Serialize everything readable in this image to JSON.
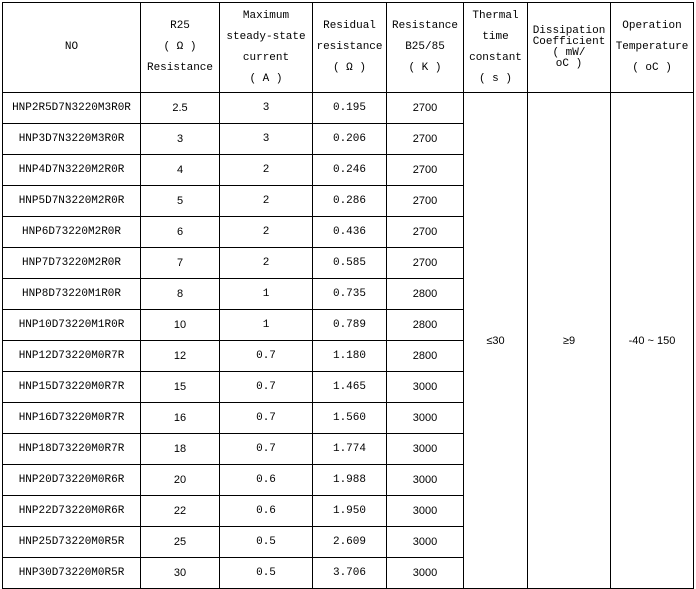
{
  "header": [
    [
      "NO"
    ],
    [
      "R25",
      "( Ω )",
      "Resistance"
    ],
    [
      "Maximum",
      "steady-state",
      "current",
      "( A )"
    ],
    [
      "Residual",
      "resistance",
      "( Ω )"
    ],
    [
      "Resistance",
      "B25/85",
      "( K )"
    ],
    [
      "Thermal",
      "time",
      "constant",
      "( s )"
    ],
    [
      "Dissipation",
      "Coefficient",
      "( mW/",
      "oC )"
    ],
    [
      "Operation",
      "Temperature",
      "( oC )"
    ]
  ],
  "rows": [
    [
      "HNP2R5D7N3220M3R0R",
      "2.5",
      "3",
      "0.195",
      "2700"
    ],
    [
      "HNP3D7N3220M3R0R",
      "3",
      "3",
      "0.206",
      "2700"
    ],
    [
      "HNP4D7N3220M2R0R",
      "4",
      "2",
      "0.246",
      "2700"
    ],
    [
      "HNP5D7N3220M2R0R",
      "5",
      "2",
      "0.286",
      "2700"
    ],
    [
      "HNP6D73220M2R0R",
      "6",
      "2",
      "0.436",
      "2700"
    ],
    [
      "HNP7D73220M2R0R",
      "7",
      "2",
      "0.585",
      "2700"
    ],
    [
      "HNP8D73220M1R0R",
      "8",
      "1",
      "0.735",
      "2800"
    ],
    [
      "HNP10D73220M1R0R",
      "10",
      "1",
      "0.789",
      "2800"
    ],
    [
      "HNP12D73220M0R7R",
      "12",
      "0.7",
      "1.180",
      "2800"
    ],
    [
      "HNP15D73220M0R7R",
      "15",
      "0.7",
      "1.465",
      "3000"
    ],
    [
      "HNP16D73220M0R7R",
      "16",
      "0.7",
      "1.560",
      "3000"
    ],
    [
      "HNP18D73220M0R7R",
      "18",
      "0.7",
      "1.774",
      "3000"
    ],
    [
      "HNP20D73220M0R6R",
      "20",
      "0.6",
      "1.988",
      "3000"
    ],
    [
      "HNP22D73220M0R6R",
      "22",
      "0.6",
      "1.950",
      "3000"
    ],
    [
      "HNP25D73220M0R5R",
      "25",
      "0.5",
      "2.609",
      "3000"
    ],
    [
      "HNP30D73220M0R5R",
      "30",
      "0.5",
      "3.706",
      "3000"
    ]
  ],
  "merged": [
    "≤30",
    "≥9",
    "-40 ~ 150"
  ]
}
